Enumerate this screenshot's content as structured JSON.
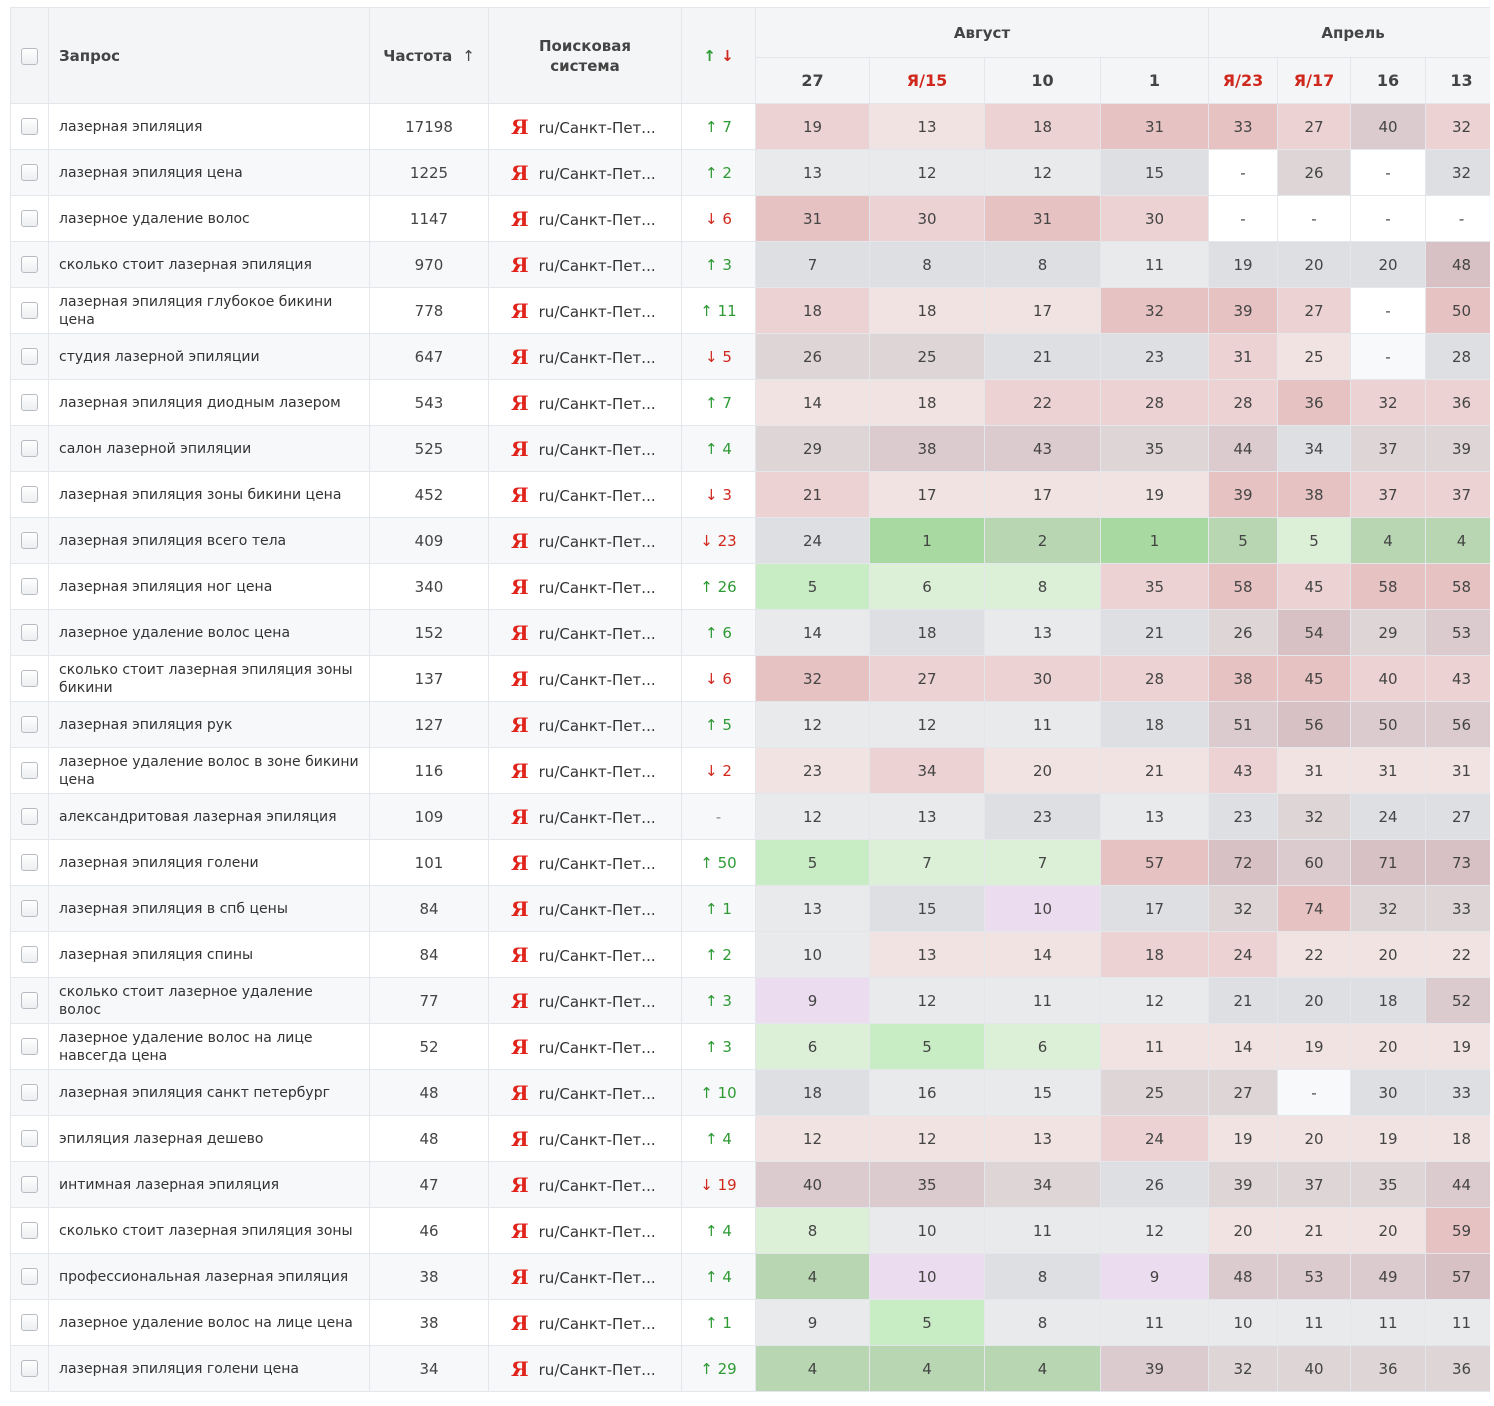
{
  "columns": {
    "query": "Запрос",
    "frequency": "Частота",
    "frequency_sort_arrow": "↑",
    "engine": "Поисковая система",
    "change_up": "↑",
    "change_down": "↓"
  },
  "month_groups": [
    {
      "label": "Август",
      "span": 4
    },
    {
      "label": "Апрель",
      "span": 4
    }
  ],
  "dates": [
    {
      "label": "27",
      "yandex": false
    },
    {
      "label": "/15",
      "yandex": true
    },
    {
      "label": "10",
      "yandex": false
    },
    {
      "label": "1",
      "yandex": false
    },
    {
      "label": "/23",
      "yandex": true
    },
    {
      "label": "/17",
      "yandex": true
    },
    {
      "label": "16",
      "yandex": false
    },
    {
      "label": "13",
      "yandex": false
    }
  ],
  "yandex_letter": "Я",
  "region": "ru/Санкт-Пет...",
  "colors": {
    "red_light": "#f2e3e3",
    "red_mid": "#ecd2d2",
    "red_strong": "#e6c2c2",
    "gray_light": "#e8eaec",
    "gray_mid": "#dddfe2",
    "gray_warm": "#ddd5d6",
    "mauve_light": "#dccbce",
    "mauve_mid": "#d8c1c5",
    "green_light": "#dcf0d7",
    "green_mid": "#c8ecc4",
    "green_strong": "#a8d9a0",
    "green_sage": "#b7d6b1",
    "violet_light": "#ecdcef",
    "white": "#ffffff",
    "blank": "#f7f9fb",
    "text": "#333333",
    "up": "#2e9a33",
    "down": "#d0281c"
  },
  "rows": [
    {
      "query": "лазерная эпиляция",
      "freq": "17198",
      "dir": "up",
      "chg": "7",
      "pos": [
        "19",
        "13",
        "18",
        "31",
        "33",
        "27",
        "40",
        "32"
      ],
      "bg": [
        "red_mid",
        "red_light",
        "red_mid",
        "red_strong",
        "red_strong",
        "red_mid",
        "mauve_light",
        "red_mid"
      ]
    },
    {
      "query": "лазерная эпиляция цена",
      "freq": "1225",
      "dir": "up",
      "chg": "2",
      "pos": [
        "13",
        "12",
        "12",
        "15",
        "-",
        "26",
        "-",
        "32"
      ],
      "bg": [
        "gray_light",
        "gray_light",
        "gray_light",
        "gray_mid",
        "white",
        "gray_warm",
        "white",
        "gray_mid"
      ]
    },
    {
      "query": "лазерное удаление волос",
      "freq": "1147",
      "dir": "down",
      "chg": "6",
      "pos": [
        "31",
        "30",
        "31",
        "30",
        "-",
        "-",
        "-",
        "-"
      ],
      "bg": [
        "red_strong",
        "red_mid",
        "red_strong",
        "red_mid",
        "white",
        "white",
        "white",
        "white"
      ]
    },
    {
      "query": "сколько стоит лазерная эпиляция",
      "freq": "970",
      "dir": "up",
      "chg": "3",
      "pos": [
        "7",
        "8",
        "8",
        "11",
        "19",
        "20",
        "20",
        "48"
      ],
      "bg": [
        "gray_mid",
        "gray_mid",
        "gray_mid",
        "gray_light",
        "gray_mid",
        "gray_mid",
        "gray_mid",
        "mauve_mid"
      ]
    },
    {
      "query": "лазерная эпиляция глубокое бикини цена",
      "freq": "778",
      "dir": "up",
      "chg": "11",
      "pos": [
        "18",
        "18",
        "17",
        "32",
        "39",
        "27",
        "-",
        "50"
      ],
      "bg": [
        "red_mid",
        "red_light",
        "red_light",
        "red_strong",
        "red_strong",
        "red_mid",
        "white",
        "red_strong"
      ]
    },
    {
      "query": "студия лазерной эпиляции",
      "freq": "647",
      "dir": "down",
      "chg": "5",
      "pos": [
        "26",
        "25",
        "21",
        "23",
        "31",
        "25",
        "-",
        "28"
      ],
      "bg": [
        "gray_warm",
        "gray_warm",
        "gray_mid",
        "gray_mid",
        "red_mid",
        "red_light",
        "blank",
        "gray_mid"
      ]
    },
    {
      "query": "лазерная эпиляция диодным лазером",
      "freq": "543",
      "dir": "up",
      "chg": "7",
      "pos": [
        "14",
        "18",
        "22",
        "28",
        "28",
        "36",
        "32",
        "36"
      ],
      "bg": [
        "red_light",
        "red_light",
        "red_mid",
        "red_mid",
        "red_mid",
        "red_strong",
        "red_mid",
        "red_mid"
      ]
    },
    {
      "query": "салон лазерной эпиляции",
      "freq": "525",
      "dir": "up",
      "chg": "4",
      "pos": [
        "29",
        "38",
        "43",
        "35",
        "44",
        "34",
        "37",
        "39"
      ],
      "bg": [
        "gray_warm",
        "mauve_light",
        "mauve_light",
        "gray_warm",
        "mauve_light",
        "gray_mid",
        "gray_warm",
        "gray_warm"
      ]
    },
    {
      "query": "лазерная эпиляция зоны бикини цена",
      "freq": "452",
      "dir": "down",
      "chg": "3",
      "pos": [
        "21",
        "17",
        "17",
        "19",
        "39",
        "38",
        "37",
        "37"
      ],
      "bg": [
        "red_mid",
        "red_light",
        "red_light",
        "red_light",
        "red_strong",
        "red_strong",
        "red_mid",
        "red_mid"
      ]
    },
    {
      "query": "лазерная эпиляция всего тела",
      "freq": "409",
      "dir": "down",
      "chg": "23",
      "pos": [
        "24",
        "1",
        "2",
        "1",
        "5",
        "5",
        "4",
        "4"
      ],
      "bg": [
        "gray_mid",
        "green_strong",
        "green_sage",
        "green_strong",
        "green_sage",
        "green_light",
        "green_sage",
        "green_sage"
      ]
    },
    {
      "query": "лазерная эпиляция ног цена",
      "freq": "340",
      "dir": "up",
      "chg": "26",
      "pos": [
        "5",
        "6",
        "8",
        "35",
        "58",
        "45",
        "58",
        "58"
      ],
      "bg": [
        "green_mid",
        "green_light",
        "green_light",
        "red_mid",
        "red_strong",
        "red_mid",
        "red_strong",
        "red_strong"
      ]
    },
    {
      "query": "лазерное удаление волос цена",
      "freq": "152",
      "dir": "up",
      "chg": "6",
      "pos": [
        "14",
        "18",
        "13",
        "21",
        "26",
        "54",
        "29",
        "53"
      ],
      "bg": [
        "gray_light",
        "gray_mid",
        "gray_light",
        "gray_mid",
        "gray_warm",
        "mauve_mid",
        "gray_warm",
        "mauve_light"
      ]
    },
    {
      "query": "сколько стоит лазерная эпиляция зоны бикини",
      "freq": "137",
      "dir": "down",
      "chg": "6",
      "pos": [
        "32",
        "27",
        "30",
        "28",
        "38",
        "45",
        "40",
        "43"
      ],
      "bg": [
        "red_strong",
        "red_mid",
        "red_mid",
        "red_mid",
        "red_strong",
        "red_strong",
        "red_mid",
        "red_mid"
      ]
    },
    {
      "query": "лазерная эпиляция рук",
      "freq": "127",
      "dir": "up",
      "chg": "5",
      "pos": [
        "12",
        "12",
        "11",
        "18",
        "51",
        "56",
        "50",
        "56"
      ],
      "bg": [
        "gray_light",
        "gray_light",
        "gray_light",
        "gray_mid",
        "mauve_light",
        "mauve_mid",
        "mauve_light",
        "mauve_light"
      ]
    },
    {
      "query": "лазерное удаление волос в зоне бикини цена",
      "freq": "116",
      "dir": "down",
      "chg": "2",
      "pos": [
        "23",
        "34",
        "20",
        "21",
        "43",
        "31",
        "31",
        "31"
      ],
      "bg": [
        "red_light",
        "red_mid",
        "red_light",
        "red_light",
        "red_mid",
        "red_light",
        "red_light",
        "red_light"
      ]
    },
    {
      "query": "александритовая лазерная эпиляция",
      "freq": "109",
      "dir": "neutral",
      "chg": "-",
      "pos": [
        "12",
        "13",
        "23",
        "13",
        "23",
        "32",
        "24",
        "27"
      ],
      "bg": [
        "gray_light",
        "gray_light",
        "gray_mid",
        "gray_light",
        "gray_mid",
        "gray_warm",
        "gray_mid",
        "gray_mid"
      ]
    },
    {
      "query": "лазерная эпиляция голени",
      "freq": "101",
      "dir": "up",
      "chg": "50",
      "pos": [
        "5",
        "7",
        "7",
        "57",
        "72",
        "60",
        "71",
        "73"
      ],
      "bg": [
        "green_mid",
        "green_light",
        "green_light",
        "red_strong",
        "mauve_mid",
        "mauve_light",
        "mauve_mid",
        "mauve_mid"
      ]
    },
    {
      "query": "лазерная эпиляция в спб цены",
      "freq": "84",
      "dir": "up",
      "chg": "1",
      "pos": [
        "13",
        "15",
        "10",
        "17",
        "32",
        "74",
        "32",
        "33"
      ],
      "bg": [
        "gray_light",
        "gray_mid",
        "violet_light",
        "gray_mid",
        "gray_warm",
        "red_strong",
        "gray_warm",
        "gray_warm"
      ]
    },
    {
      "query": "лазерная эпиляция спины",
      "freq": "84",
      "dir": "up",
      "chg": "2",
      "pos": [
        "10",
        "13",
        "14",
        "18",
        "24",
        "22",
        "20",
        "22"
      ],
      "bg": [
        "gray_light",
        "red_light",
        "red_light",
        "red_mid",
        "red_mid",
        "red_light",
        "red_light",
        "red_light"
      ]
    },
    {
      "query": "сколько стоит лазерное удаление волос",
      "freq": "77",
      "dir": "up",
      "chg": "3",
      "pos": [
        "9",
        "12",
        "11",
        "12",
        "21",
        "20",
        "18",
        "52"
      ],
      "bg": [
        "violet_light",
        "gray_light",
        "gray_light",
        "gray_light",
        "gray_mid",
        "gray_mid",
        "gray_mid",
        "mauve_light"
      ]
    },
    {
      "query": "лазерное удаление волос на лице навсегда цена",
      "freq": "52",
      "dir": "up",
      "chg": "3",
      "pos": [
        "6",
        "5",
        "6",
        "11",
        "14",
        "19",
        "20",
        "19"
      ],
      "bg": [
        "green_light",
        "green_mid",
        "green_light",
        "red_light",
        "red_light",
        "red_light",
        "red_light",
        "red_light"
      ]
    },
    {
      "query": "лазерная эпиляция санкт петербург",
      "freq": "48",
      "dir": "up",
      "chg": "10",
      "pos": [
        "18",
        "16",
        "15",
        "25",
        "27",
        "-",
        "30",
        "33"
      ],
      "bg": [
        "gray_mid",
        "gray_light",
        "gray_light",
        "gray_warm",
        "gray_warm",
        "blank",
        "gray_mid",
        "gray_mid"
      ]
    },
    {
      "query": "эпиляция лазерная дешево",
      "freq": "48",
      "dir": "up",
      "chg": "4",
      "pos": [
        "12",
        "12",
        "13",
        "24",
        "19",
        "20",
        "19",
        "18"
      ],
      "bg": [
        "red_light",
        "red_light",
        "red_light",
        "red_mid",
        "red_light",
        "red_light",
        "red_light",
        "red_light"
      ]
    },
    {
      "query": "интимная лазерная эпиляция",
      "freq": "47",
      "dir": "down",
      "chg": "19",
      "pos": [
        "40",
        "35",
        "34",
        "26",
        "39",
        "37",
        "35",
        "44"
      ],
      "bg": [
        "mauve_light",
        "mauve_light",
        "gray_warm",
        "gray_mid",
        "gray_warm",
        "gray_warm",
        "gray_warm",
        "mauve_light"
      ]
    },
    {
      "query": "сколько стоит лазерная эпиляция зоны",
      "freq": "46",
      "dir": "up",
      "chg": "4",
      "pos": [
        "8",
        "10",
        "11",
        "12",
        "20",
        "21",
        "20",
        "59"
      ],
      "bg": [
        "green_light",
        "gray_light",
        "gray_light",
        "gray_light",
        "red_light",
        "red_light",
        "red_light",
        "red_strong"
      ]
    },
    {
      "query": "профессиональная лазерная эпиляция",
      "freq": "38",
      "dir": "up",
      "chg": "4",
      "pos": [
        "4",
        "10",
        "8",
        "9",
        "48",
        "53",
        "49",
        "57"
      ],
      "bg": [
        "green_sage",
        "violet_light",
        "gray_mid",
        "violet_light",
        "mauve_light",
        "mauve_light",
        "mauve_light",
        "mauve_mid"
      ]
    },
    {
      "query": "лазерное удаление волос на лице цена",
      "freq": "38",
      "dir": "up",
      "chg": "1",
      "pos": [
        "9",
        "5",
        "8",
        "11",
        "10",
        "11",
        "11",
        "11"
      ],
      "bg": [
        "gray_light",
        "green_mid",
        "gray_light",
        "gray_light",
        "gray_light",
        "gray_light",
        "gray_light",
        "gray_light"
      ]
    },
    {
      "query": "лазерная эпиляция голени цена",
      "freq": "34",
      "dir": "up",
      "chg": "29",
      "pos": [
        "4",
        "4",
        "4",
        "39",
        "32",
        "40",
        "36",
        "36"
      ],
      "bg": [
        "green_sage",
        "green_sage",
        "green_sage",
        "mauve_light",
        "gray_warm",
        "gray_warm",
        "gray_warm",
        "gray_warm"
      ]
    }
  ]
}
